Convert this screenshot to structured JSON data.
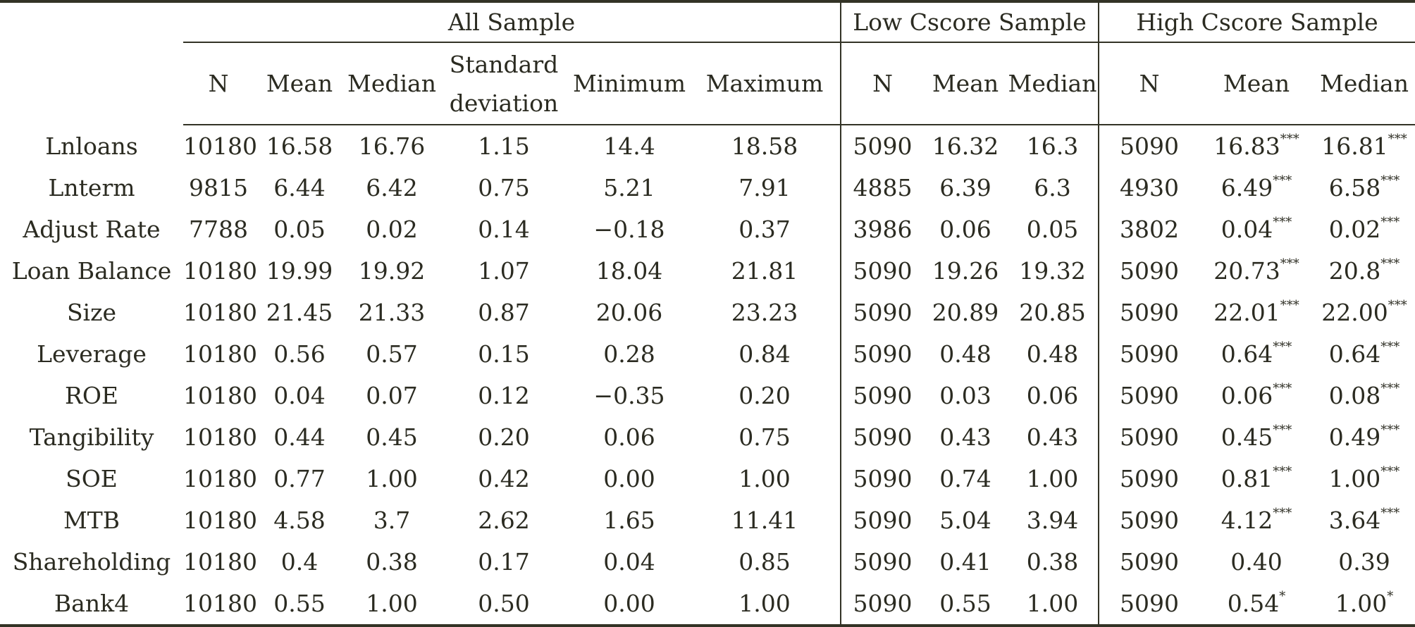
{
  "groups": {
    "all": "All Sample",
    "low": "Low Cscore Sample",
    "high": "High Cscore Sample"
  },
  "columns": {
    "n": "N",
    "mean": "Mean",
    "median": "Median",
    "sd_line1": "Standard",
    "sd_line2": "deviation",
    "min": "Minimum",
    "max": "Maximum"
  },
  "rows": [
    {
      "var": "Lnloans",
      "all": [
        "10180",
        "16.58",
        "16.76",
        "1.15",
        "14.4",
        "18.58"
      ],
      "low": [
        "5090",
        "16.32",
        "16.3"
      ],
      "high": [
        "5090",
        "16.83",
        "16.81"
      ],
      "sig": [
        "***",
        "***"
      ]
    },
    {
      "var": "Lnterm",
      "all": [
        "9815",
        "6.44",
        "6.42",
        "0.75",
        "5.21",
        "7.91"
      ],
      "low": [
        "4885",
        "6.39",
        "6.3"
      ],
      "high": [
        "4930",
        "6.49",
        "6.58"
      ],
      "sig": [
        "***",
        "***"
      ]
    },
    {
      "var": "Adjust Rate",
      "all": [
        "7788",
        "0.05",
        "0.02",
        "0.14",
        "−0.18",
        "0.37"
      ],
      "low": [
        "3986",
        "0.06",
        "0.05"
      ],
      "high": [
        "3802",
        "0.04",
        "0.02"
      ],
      "sig": [
        "***",
        "***"
      ]
    },
    {
      "var": "Loan Balance",
      "all": [
        "10180",
        "19.99",
        "19.92",
        "1.07",
        "18.04",
        "21.81"
      ],
      "low": [
        "5090",
        "19.26",
        "19.32"
      ],
      "high": [
        "5090",
        "20.73",
        "20.8"
      ],
      "sig": [
        "***",
        "***"
      ]
    },
    {
      "var": "Size",
      "all": [
        "10180",
        "21.45",
        "21.33",
        "0.87",
        "20.06",
        "23.23"
      ],
      "low": [
        "5090",
        "20.89",
        "20.85"
      ],
      "high": [
        "5090",
        "22.01",
        "22.00"
      ],
      "sig": [
        "***",
        "***"
      ]
    },
    {
      "var": "Leverage",
      "all": [
        "10180",
        "0.56",
        "0.57",
        "0.15",
        "0.28",
        "0.84"
      ],
      "low": [
        "5090",
        "0.48",
        "0.48"
      ],
      "high": [
        "5090",
        "0.64",
        "0.64"
      ],
      "sig": [
        "***",
        "***"
      ]
    },
    {
      "var": "ROE",
      "all": [
        "10180",
        "0.04",
        "0.07",
        "0.12",
        "−0.35",
        "0.20"
      ],
      "low": [
        "5090",
        "0.03",
        "0.06"
      ],
      "high": [
        "5090",
        "0.06",
        "0.08"
      ],
      "sig": [
        "***",
        "***"
      ]
    },
    {
      "var": "Tangibility",
      "all": [
        "10180",
        "0.44",
        "0.45",
        "0.20",
        "0.06",
        "0.75"
      ],
      "low": [
        "5090",
        "0.43",
        "0.43"
      ],
      "high": [
        "5090",
        "0.45",
        "0.49"
      ],
      "sig": [
        "***",
        "***"
      ]
    },
    {
      "var": "SOE",
      "all": [
        "10180",
        "0.77",
        "1.00",
        "0.42",
        "0.00",
        "1.00"
      ],
      "low": [
        "5090",
        "0.74",
        "1.00"
      ],
      "high": [
        "5090",
        "0.81",
        "1.00"
      ],
      "sig": [
        "***",
        "***"
      ]
    },
    {
      "var": "MTB",
      "all": [
        "10180",
        "4.58",
        "3.7",
        "2.62",
        "1.65",
        "11.41"
      ],
      "low": [
        "5090",
        "5.04",
        "3.94"
      ],
      "high": [
        "5090",
        "4.12",
        "3.64"
      ],
      "sig": [
        "***",
        "***"
      ]
    },
    {
      "var": "Shareholding",
      "all": [
        "10180",
        "0.4",
        "0.38",
        "0.17",
        "0.04",
        "0.85"
      ],
      "low": [
        "5090",
        "0.41",
        "0.38"
      ],
      "high": [
        "5090",
        "0.40",
        "0.39"
      ],
      "sig": [
        "",
        ""
      ]
    },
    {
      "var": "Bank4",
      "all": [
        "10180",
        "0.55",
        "1.00",
        "0.50",
        "0.00",
        "1.00"
      ],
      "low": [
        "5090",
        "0.55",
        "1.00"
      ],
      "high": [
        "5090",
        "0.54",
        "1.00"
      ],
      "sig": [
        "*",
        "*"
      ]
    }
  ]
}
